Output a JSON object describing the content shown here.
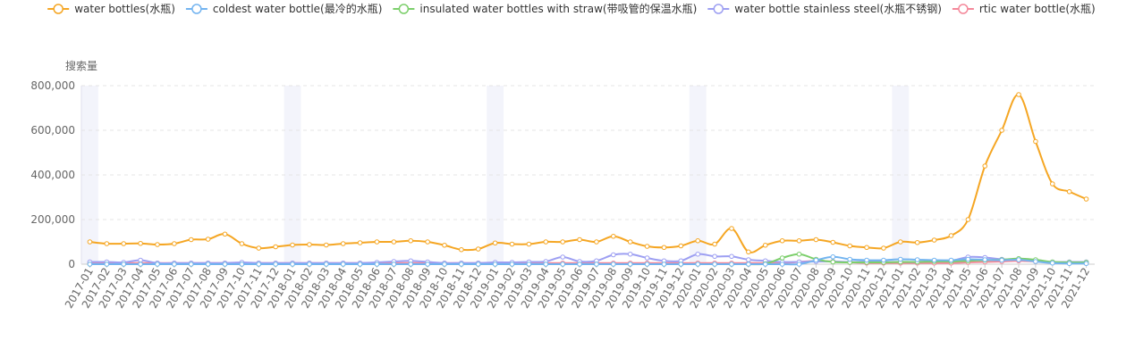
{
  "chart_data": {
    "type": "line",
    "ylabel": "搜索量",
    "ylim": [
      0,
      800000
    ],
    "y_ticks": [
      "0",
      "200,000",
      "400,000",
      "600,000",
      "800,000"
    ],
    "grid": "horizontal-dashed",
    "legend_position": "top-center",
    "highlight_months": [
      "2017-01",
      "2018-01",
      "2019-01",
      "2020-01",
      "2021-01"
    ],
    "x": [
      "2017-01",
      "2017-02",
      "2017-03",
      "2017-04",
      "2017-05",
      "2017-06",
      "2017-07",
      "2017-08",
      "2017-09",
      "2017-10",
      "2017-11",
      "2017-12",
      "2018-01",
      "2018-02",
      "2018-03",
      "2018-04",
      "2018-05",
      "2018-06",
      "2018-07",
      "2018-08",
      "2018-09",
      "2018-10",
      "2018-11",
      "2018-12",
      "2019-01",
      "2019-02",
      "2019-03",
      "2019-04",
      "2019-05",
      "2019-06",
      "2019-07",
      "2019-08",
      "2019-09",
      "2019-10",
      "2019-11",
      "2019-12",
      "2020-01",
      "2020-02",
      "2020-03",
      "2020-04",
      "2020-05",
      "2020-06",
      "2020-07",
      "2020-08",
      "2020-09",
      "2020-10",
      "2020-11",
      "2020-12",
      "2021-01",
      "2021-02",
      "2021-03",
      "2021-04",
      "2021-05",
      "2021-06",
      "2021-07",
      "2021-08",
      "2021-09",
      "2021-10",
      "2021-11",
      "2021-12"
    ],
    "series": [
      {
        "name": "water bottles(水瓶)",
        "color": "#f5a623",
        "values": [
          100000,
          92000,
          92000,
          93000,
          88000,
          92000,
          110000,
          112000,
          135000,
          92000,
          72000,
          78000,
          86000,
          88000,
          86000,
          92000,
          96000,
          100000,
          100000,
          105000,
          100000,
          85000,
          65000,
          68000,
          95000,
          90000,
          90000,
          100000,
          100000,
          110000,
          100000,
          125000,
          100000,
          80000,
          75000,
          82000,
          105000,
          90000,
          160000,
          55000,
          85000,
          105000,
          105000,
          110000,
          98000,
          82000,
          75000,
          72000,
          100000,
          97000,
          108000,
          128000,
          200000,
          440000,
          600000,
          760000,
          550000,
          360000,
          325000,
          292000
        ]
      },
      {
        "name": "coldest water bottle(最冷的水瓶)",
        "color": "#73b4f0",
        "values": [
          0,
          0,
          0,
          0,
          0,
          0,
          0,
          0,
          0,
          0,
          0,
          0,
          0,
          0,
          0,
          0,
          0,
          0,
          0,
          0,
          0,
          0,
          0,
          0,
          0,
          0,
          0,
          0,
          0,
          0,
          0,
          0,
          0,
          0,
          0,
          0,
          0,
          0,
          0,
          0,
          0,
          0,
          0,
          18000,
          33000,
          22000,
          18000,
          18000,
          22000,
          20000,
          18000,
          18000,
          22000,
          20000,
          18000,
          20000,
          12000,
          5000,
          3000,
          3000
        ]
      },
      {
        "name": "insulated water bottles with straw(带吸管的保温水瓶)",
        "color": "#7ccf6b",
        "values": [
          0,
          0,
          0,
          0,
          0,
          0,
          0,
          0,
          0,
          0,
          0,
          0,
          0,
          0,
          0,
          0,
          0,
          0,
          0,
          0,
          0,
          0,
          0,
          0,
          0,
          0,
          0,
          0,
          0,
          0,
          0,
          0,
          0,
          0,
          0,
          0,
          0,
          0,
          0,
          0,
          2000,
          28000,
          45000,
          22000,
          10000,
          8000,
          8000,
          8000,
          10000,
          10000,
          12000,
          12000,
          15000,
          18000,
          20000,
          25000,
          20000,
          10000,
          8000,
          8000
        ]
      },
      {
        "name": "water bottle stainless steel(水瓶不锈钢)",
        "color": "#9d9ff2",
        "values": [
          10000,
          10000,
          8000,
          18000,
          5000,
          5000,
          5000,
          5000,
          5000,
          8000,
          5000,
          5000,
          5000,
          5000,
          5000,
          5000,
          5000,
          8000,
          12000,
          15000,
          10000,
          5000,
          5000,
          5000,
          8000,
          8000,
          10000,
          12000,
          32000,
          12000,
          15000,
          42000,
          45000,
          28000,
          15000,
          15000,
          45000,
          35000,
          35000,
          20000,
          15000,
          10000,
          10000,
          12000,
          12000,
          10000,
          10000,
          10000,
          10000,
          10000,
          15000,
          15000,
          32000,
          30000,
          22000,
          20000,
          15000,
          10000,
          10000,
          10000
        ]
      },
      {
        "name": "rtic water bottle(水瓶)",
        "color": "#f4889a",
        "values": [
          5000,
          5000,
          5000,
          5000,
          5000,
          5000,
          5000,
          5000,
          5000,
          5000,
          5000,
          5000,
          5000,
          5000,
          5000,
          5000,
          5000,
          5000,
          5000,
          5000,
          5000,
          5000,
          5000,
          5000,
          5000,
          5000,
          5000,
          5000,
          5000,
          5000,
          5000,
          5000,
          5000,
          5000,
          5000,
          5000,
          5000,
          5000,
          5000,
          5000,
          5000,
          5000,
          10000,
          15000,
          12000,
          8000,
          5000,
          5000,
          5000,
          5000,
          5000,
          5000,
          8000,
          10000,
          12000,
          15000,
          12000,
          8000,
          5000,
          5000
        ]
      }
    ]
  }
}
